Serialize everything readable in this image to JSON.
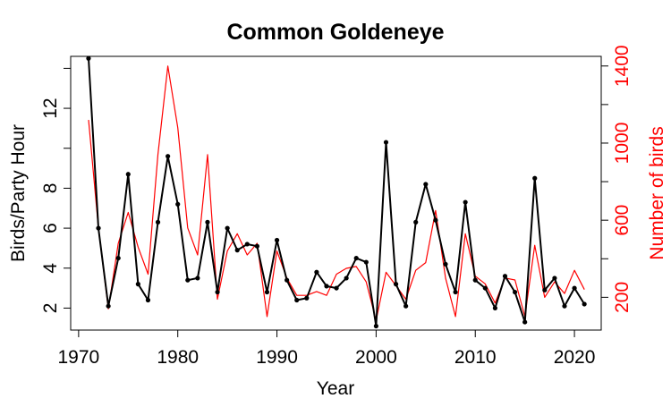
{
  "chart_data": {
    "type": "line",
    "title": "Common Goldeneye",
    "xlabel": "Year",
    "ylabel_left": "Birds/Party Hour",
    "ylabel_right": "Number of birds",
    "xlim": [
      1969.2,
      2022.7
    ],
    "ylim_left": [
      0.9,
      14.6
    ],
    "ylim_right": [
      30,
      1450
    ],
    "x_ticks": [
      1970,
      1980,
      1990,
      2000,
      2010,
      2020
    ],
    "y_ticks_left": [
      2,
      4,
      6,
      8,
      12
    ],
    "y_ticks_right": [
      200,
      600,
      1000,
      1400
    ],
    "grid": false,
    "colors": {
      "left_series": "#000000",
      "right_series": "#ff0000",
      "right_axis": "#ff0000"
    },
    "series": [
      {
        "axis": "left",
        "x": [
          1971,
          1972,
          1973,
          1974,
          1975,
          1976,
          1977,
          1978,
          1979,
          1980,
          1981,
          1982,
          1983,
          1984,
          1985,
          1986,
          1987,
          1988,
          1989,
          1990,
          1991,
          1992,
          1993,
          1994,
          1995,
          1996,
          1997,
          1998,
          1999,
          2000,
          2001,
          2002,
          2003,
          2004,
          2005,
          2006,
          2007,
          2008,
          2009,
          2010,
          2011,
          2012,
          2013,
          2014,
          2015,
          2016,
          2017,
          2018,
          2019,
          2020,
          2021
        ],
        "values": [
          14.5,
          6.0,
          2.1,
          4.5,
          8.7,
          3.2,
          2.4,
          6.3,
          9.6,
          7.2,
          3.4,
          3.5,
          6.3,
          2.8,
          6.0,
          4.9,
          5.2,
          5.1,
          2.8,
          5.4,
          3.4,
          2.4,
          2.5,
          3.8,
          3.1,
          3.0,
          3.5,
          4.5,
          4.3,
          1.1,
          10.3,
          3.2,
          2.1,
          6.3,
          8.2,
          6.4,
          4.2,
          2.8,
          7.3,
          3.4,
          3.0,
          2.0,
          3.6,
          2.8,
          1.3,
          8.5,
          2.9,
          3.5,
          2.1,
          3.0,
          2.2
        ]
      },
      {
        "axis": "right",
        "x": [
          1971,
          1972,
          1973,
          1974,
          1975,
          1976,
          1977,
          1978,
          1979,
          1980,
          1981,
          1982,
          1983,
          1984,
          1985,
          1986,
          1987,
          1988,
          1989,
          1990,
          1991,
          1992,
          1993,
          1994,
          1995,
          1996,
          1997,
          1998,
          1999,
          2000,
          2001,
          2002,
          2003,
          2004,
          2005,
          2006,
          2007,
          2008,
          2009,
          2010,
          2011,
          2012,
          2013,
          2014,
          2015,
          2016,
          2017,
          2018,
          2019,
          2020,
          2021
        ],
        "values": [
          1120,
          560,
          140,
          480,
          640,
          460,
          320,
          940,
          1400,
          1080,
          560,
          420,
          940,
          190,
          440,
          530,
          420,
          480,
          100,
          440,
          300,
          210,
          210,
          230,
          210,
          320,
          350,
          360,
          280,
          80,
          330,
          260,
          190,
          340,
          380,
          650,
          300,
          100,
          530,
          310,
          270,
          170,
          300,
          290,
          100,
          470,
          200,
          280,
          220,
          340,
          240
        ]
      }
    ]
  }
}
